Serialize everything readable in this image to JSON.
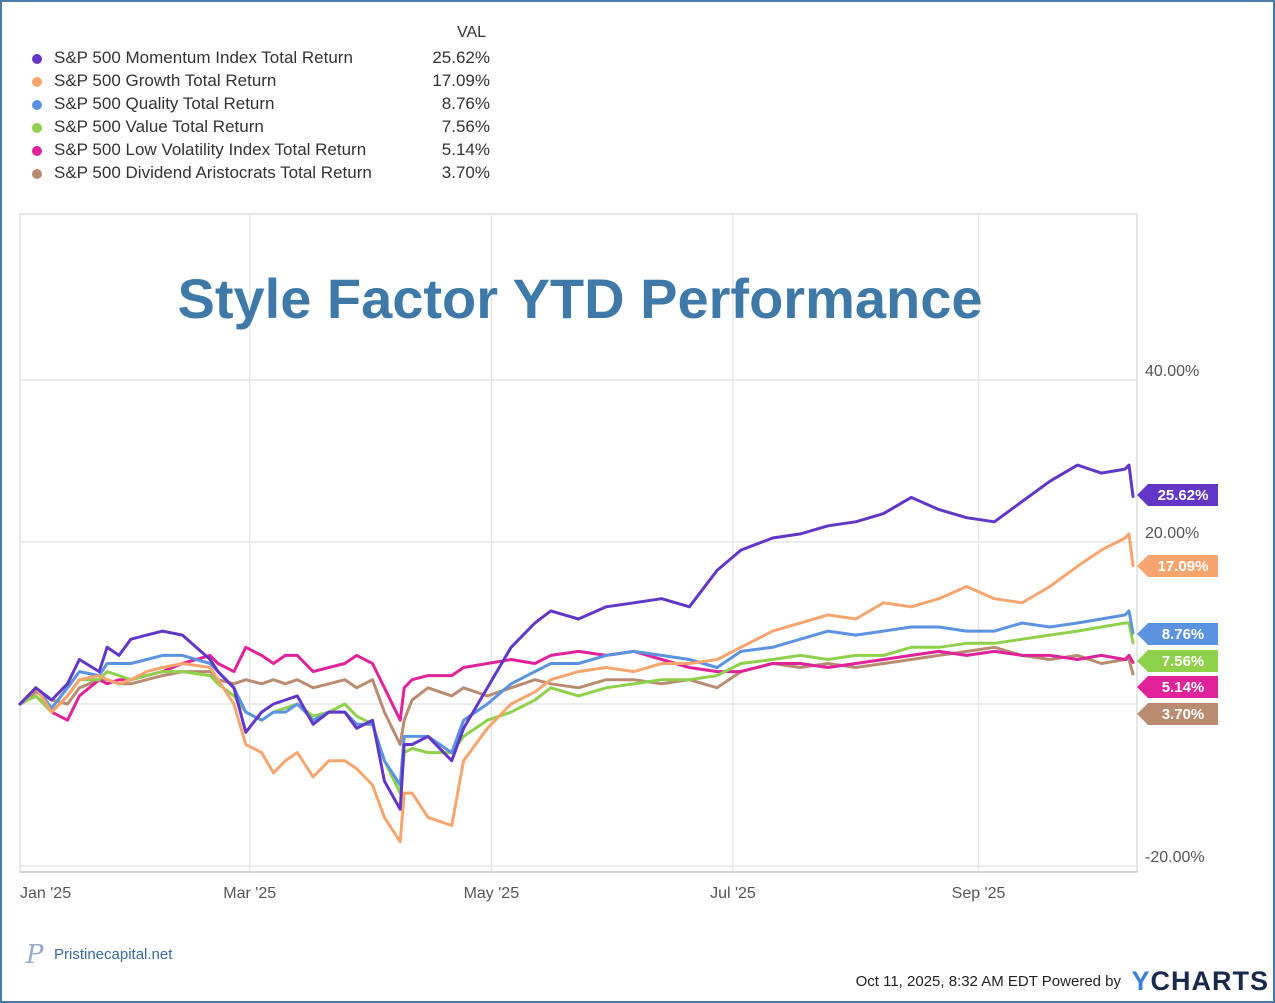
{
  "legend": {
    "value_header": "VAL",
    "items": [
      {
        "name": "S&P 500 Momentum Index Total Return",
        "value": "25.62%",
        "color": "#6237c8"
      },
      {
        "name": "S&P 500 Growth Total Return",
        "value": "17.09%",
        "color": "#f7a56e"
      },
      {
        "name": "S&P 500 Quality Total Return",
        "value": "8.76%",
        "color": "#5b93e0"
      },
      {
        "name": "S&P 500 Value Total Return",
        "value": "7.56%",
        "color": "#8fd14b"
      },
      {
        "name": "S&P 500 Low Volatility Index Total Return",
        "value": "5.14%",
        "color": "#e0239a"
      },
      {
        "name": "S&P 500 Dividend Aristocrats Total Return",
        "value": "3.70%",
        "color": "#b98b70"
      }
    ]
  },
  "chart_data": {
    "type": "line",
    "title": "Style Factor YTD Performance",
    "x_tick_labels": [
      "Jan '25",
      "Mar '25",
      "May '25",
      "Jul '25",
      "Sep '25"
    ],
    "x_tick_dates": [
      "2025-01-02",
      "2025-03-01",
      "2025-05-01",
      "2025-07-01",
      "2025-09-01"
    ],
    "y_tick_labels": [
      "40.00%",
      "20.00%",
      "-20.00%"
    ],
    "ylim": [
      -20,
      40
    ],
    "xlim": [
      "2025-01-02",
      "2025-10-10"
    ],
    "grid": true,
    "legend_position": "top-left",
    "x": [
      "2025-01-02",
      "2025-01-06",
      "2025-01-10",
      "2025-01-14",
      "2025-01-17",
      "2025-01-22",
      "2025-01-24",
      "2025-01-27",
      "2025-01-30",
      "2025-02-03",
      "2025-02-07",
      "2025-02-12",
      "2025-02-19",
      "2025-02-21",
      "2025-02-25",
      "2025-02-28",
      "2025-03-04",
      "2025-03-07",
      "2025-03-10",
      "2025-03-13",
      "2025-03-17",
      "2025-03-21",
      "2025-03-25",
      "2025-03-28",
      "2025-04-01",
      "2025-04-04",
      "2025-04-08",
      "2025-04-09",
      "2025-04-11",
      "2025-04-15",
      "2025-04-21",
      "2025-04-24",
      "2025-04-30",
      "2025-05-06",
      "2025-05-12",
      "2025-05-16",
      "2025-05-23",
      "2025-05-30",
      "2025-06-06",
      "2025-06-13",
      "2025-06-20",
      "2025-06-27",
      "2025-07-03",
      "2025-07-11",
      "2025-07-18",
      "2025-07-25",
      "2025-08-01",
      "2025-08-08",
      "2025-08-15",
      "2025-08-22",
      "2025-08-29",
      "2025-09-05",
      "2025-09-12",
      "2025-09-19",
      "2025-09-26",
      "2025-10-02",
      "2025-10-08",
      "2025-10-09",
      "2025-10-10"
    ],
    "series": [
      {
        "name": "S&P 500 Momentum Index Total Return",
        "color": "#6237c8",
        "last_label": "25.62%",
        "values": [
          0,
          2,
          0.5,
          2.5,
          5.5,
          4,
          7,
          6,
          8,
          8.5,
          9,
          8.5,
          5.5,
          4,
          2,
          -3.5,
          -1,
          0,
          0.5,
          1,
          -2.5,
          -1,
          -1,
          -3,
          -2,
          -9.5,
          -13,
          -5,
          -5,
          -4,
          -7,
          -3,
          2,
          7,
          10,
          11.5,
          10.5,
          12,
          12.5,
          13,
          12,
          16.5,
          19,
          20.5,
          21,
          22,
          22.5,
          23.5,
          25.5,
          24,
          23,
          22.5,
          25,
          27.5,
          29.5,
          28.5,
          29,
          29.5,
          25.62
        ]
      },
      {
        "name": "S&P 500 Growth Total Return",
        "color": "#f7a56e",
        "last_label": "17.09%",
        "values": [
          0,
          2,
          -1,
          1,
          3,
          3.5,
          3,
          2.5,
          3,
          4,
          4.5,
          5,
          4.5,
          3,
          0,
          -5,
          -6,
          -8.5,
          -7,
          -6,
          -9,
          -7,
          -7,
          -8,
          -10,
          -14,
          -17,
          -11,
          -11,
          -14,
          -15,
          -7,
          -3,
          0,
          1.5,
          3,
          4,
          4.5,
          4,
          5,
          5,
          5.5,
          7,
          9,
          10,
          11,
          10.5,
          12.5,
          12,
          13,
          14.5,
          13,
          12.5,
          14.5,
          17,
          19,
          20.5,
          21,
          17.09
        ]
      },
      {
        "name": "S&P 500 Quality Total Return",
        "color": "#5b93e0",
        "last_label": "8.76%",
        "values": [
          0,
          2,
          -0.5,
          2,
          4,
          3.5,
          5,
          5,
          5,
          5.5,
          6,
          6,
          5,
          4,
          2,
          -1,
          -2,
          -1,
          -1,
          0,
          -2,
          -1,
          -1,
          -2.5,
          -2.5,
          -7,
          -10,
          -4,
          -4,
          -4,
          -6,
          -2,
          0,
          2.5,
          4,
          5,
          5,
          6,
          6.5,
          6,
          5.5,
          4.5,
          6.5,
          7,
          8,
          9,
          8.5,
          9,
          9.5,
          9.5,
          9,
          9,
          10,
          9.5,
          10,
          10.5,
          11,
          11.5,
          8.76
        ]
      },
      {
        "name": "S&P 500 Value Total Return",
        "color": "#8fd14b",
        "last_label": "7.56%",
        "values": [
          0,
          1,
          -1,
          1,
          3,
          3,
          4,
          3.5,
          3,
          3.5,
          4,
          4,
          3.5,
          2.5,
          1,
          -1,
          -2,
          -1,
          -0.5,
          0,
          -1.5,
          -1,
          0,
          -1.5,
          -2.5,
          -7,
          -11,
          -6,
          -5.5,
          -6,
          -6,
          -4,
          -2,
          -1,
          0.5,
          2,
          1,
          2,
          2.5,
          3,
          3,
          3.5,
          5,
          5.5,
          6,
          5.5,
          6,
          6,
          7,
          7,
          7.5,
          7.5,
          8,
          8.5,
          9,
          9.5,
          10,
          10,
          7.56
        ]
      },
      {
        "name": "S&P 500 Low Volatility Index Total Return",
        "color": "#e0239a",
        "last_label": "5.14%",
        "values": [
          0,
          1,
          -1,
          -2,
          1,
          3,
          2.5,
          3,
          3,
          3.5,
          4,
          5,
          6,
          5,
          4,
          7,
          6,
          5,
          6,
          6,
          4,
          4.5,
          5,
          6,
          5,
          2,
          -2,
          2,
          3,
          3.5,
          3.5,
          4.5,
          5,
          5.5,
          5,
          6,
          6.5,
          6,
          6.5,
          5.5,
          4.5,
          4,
          4,
          5,
          5,
          4.5,
          5,
          5.5,
          6,
          6.5,
          6,
          6.5,
          6,
          6,
          5.5,
          6,
          5.5,
          6,
          5.14
        ]
      },
      {
        "name": "S&P 500 Dividend Aristocrats Total Return",
        "color": "#b98b70",
        "last_label": "3.70%",
        "values": [
          0,
          1.5,
          0.5,
          0,
          2,
          3,
          3,
          2.5,
          2.5,
          3,
          3.5,
          4,
          4,
          3,
          2.5,
          3,
          2.5,
          3,
          2.5,
          3,
          2,
          2.5,
          3,
          2,
          3,
          -1,
          -5,
          -2,
          0.5,
          2,
          1,
          2,
          1,
          2,
          3,
          2.5,
          2,
          3,
          3,
          2.5,
          3,
          2,
          4,
          5,
          4.5,
          5,
          4.5,
          5,
          5.5,
          6,
          6.5,
          7,
          6,
          5.5,
          6,
          5,
          5.5,
          5.5,
          3.7
        ]
      }
    ]
  },
  "branding": {
    "logo_mark": "P",
    "logo_text": "Pristinecapital.net"
  },
  "footer": {
    "timestamp": "Oct 11, 2025, 8:32 AM EDT Powered by",
    "brand_y": "Y",
    "brand_rest": "CHARTS"
  }
}
